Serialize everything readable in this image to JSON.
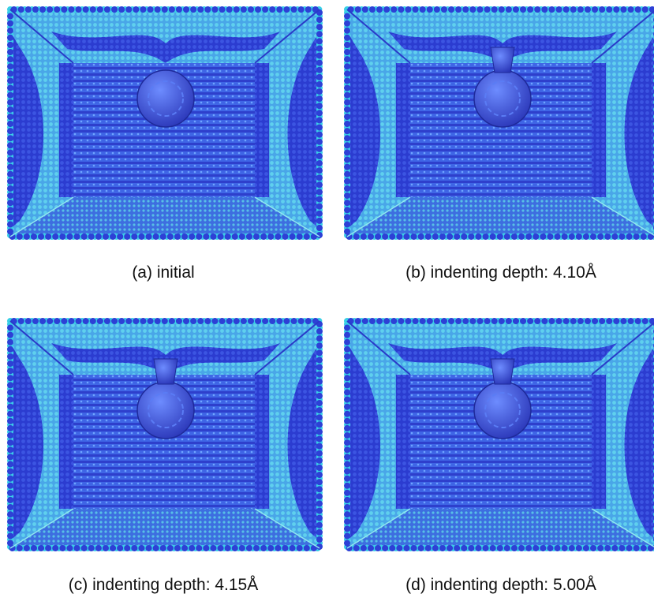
{
  "panels": [
    {
      "caption": "(a) initial"
    },
    {
      "caption": "(b) indenting depth: 4.10Å"
    },
    {
      "caption": "(c) indenting depth: 4.15Å"
    },
    {
      "caption": "(d) indenting depth: 5.00Å"
    }
  ]
}
